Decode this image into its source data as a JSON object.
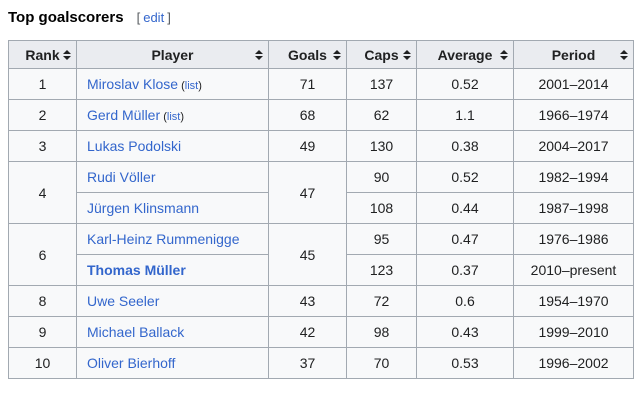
{
  "heading": {
    "title": "Top goalscorers",
    "edit_open": "[",
    "edit_label": "edit",
    "edit_close": "]"
  },
  "colors": {
    "link_blue": "#3366cc",
    "header_bg": "#eaecf0",
    "row_bg": "#f8f9fa",
    "border": "#a2a9b1",
    "text": "#202122"
  },
  "table": {
    "headers": [
      {
        "label": "Rank",
        "sortable": true
      },
      {
        "label": "Player",
        "sortable": true
      },
      {
        "label": "Goals",
        "sortable": true
      },
      {
        "label": "Caps",
        "sortable": true
      },
      {
        "label": "Average",
        "sortable": true
      },
      {
        "label": "Period",
        "sortable": true
      }
    ],
    "rows": [
      {
        "rank": "1",
        "rank_rowspan": 1,
        "player": "Miroslav Klose",
        "list_link": "list",
        "player_bold": false,
        "goals": "71",
        "goals_rowspan": 1,
        "caps": "137",
        "average": "0.52",
        "period": "2001–2014"
      },
      {
        "rank": "2",
        "rank_rowspan": 1,
        "player": "Gerd Müller",
        "list_link": "list",
        "player_bold": false,
        "goals": "68",
        "goals_rowspan": 1,
        "caps": "62",
        "average": "1.1",
        "period": "1966–1974"
      },
      {
        "rank": "3",
        "rank_rowspan": 1,
        "player": "Lukas Podolski",
        "list_link": null,
        "player_bold": false,
        "goals": "49",
        "goals_rowspan": 1,
        "caps": "130",
        "average": "0.38",
        "period": "2004–2017"
      },
      {
        "rank": "4",
        "rank_rowspan": 2,
        "player": "Rudi Völler",
        "list_link": null,
        "player_bold": false,
        "goals": "47",
        "goals_rowspan": 2,
        "caps": "90",
        "average": "0.52",
        "period": "1982–1994"
      },
      {
        "rank": null,
        "rank_rowspan": 0,
        "player": "Jürgen Klinsmann",
        "list_link": null,
        "player_bold": false,
        "goals": null,
        "goals_rowspan": 0,
        "caps": "108",
        "average": "0.44",
        "period": "1987–1998"
      },
      {
        "rank": "6",
        "rank_rowspan": 2,
        "player": "Karl-Heinz Rummenigge",
        "list_link": null,
        "player_bold": false,
        "goals": "45",
        "goals_rowspan": 2,
        "caps": "95",
        "average": "0.47",
        "period": "1976–1986"
      },
      {
        "rank": null,
        "rank_rowspan": 0,
        "player": "Thomas Müller",
        "list_link": null,
        "player_bold": true,
        "goals": null,
        "goals_rowspan": 0,
        "caps": "123",
        "average": "0.37",
        "period": "2010–present"
      },
      {
        "rank": "8",
        "rank_rowspan": 1,
        "player": "Uwe Seeler",
        "list_link": null,
        "player_bold": false,
        "goals": "43",
        "goals_rowspan": 1,
        "caps": "72",
        "average": "0.6",
        "period": "1954–1970"
      },
      {
        "rank": "9",
        "rank_rowspan": 1,
        "player": "Michael Ballack",
        "list_link": null,
        "player_bold": false,
        "goals": "42",
        "goals_rowspan": 1,
        "caps": "98",
        "average": "0.43",
        "period": "1999–2010"
      },
      {
        "rank": "10",
        "rank_rowspan": 1,
        "player": "Oliver Bierhoff",
        "list_link": null,
        "player_bold": false,
        "goals": "37",
        "goals_rowspan": 1,
        "caps": "70",
        "average": "0.53",
        "period": "1996–2002"
      }
    ]
  }
}
